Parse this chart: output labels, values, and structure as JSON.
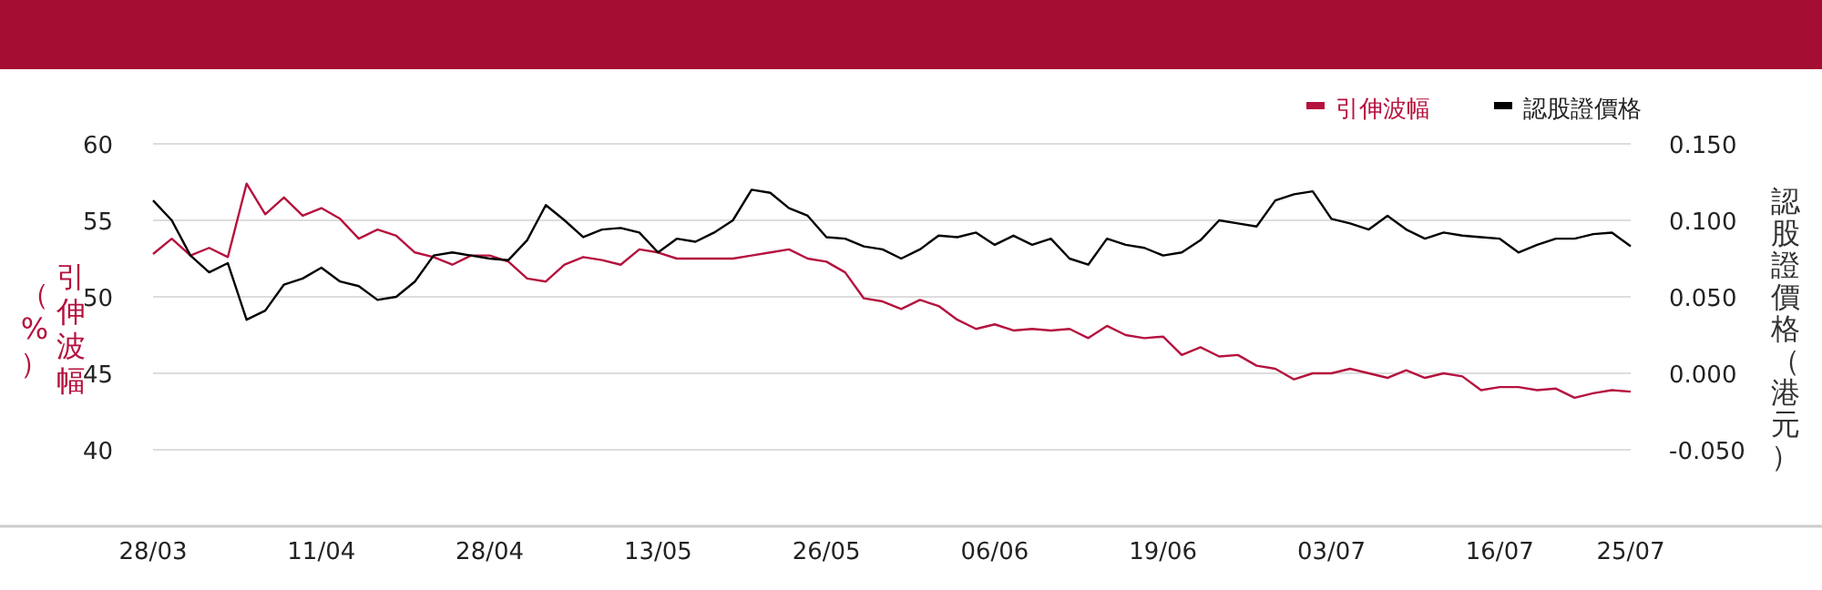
{
  "chart_data": {
    "type": "line",
    "categories": [
      "28/03",
      null,
      null,
      null,
      null,
      null,
      null,
      null,
      null,
      "11/04",
      null,
      null,
      null,
      null,
      null,
      null,
      null,
      null,
      "28/04",
      null,
      null,
      null,
      null,
      null,
      null,
      null,
      null,
      "13/05",
      null,
      null,
      null,
      null,
      null,
      null,
      null,
      null,
      "26/05",
      null,
      null,
      null,
      null,
      null,
      null,
      null,
      null,
      "06/06",
      null,
      null,
      null,
      null,
      null,
      null,
      null,
      null,
      "19/06",
      null,
      null,
      null,
      null,
      null,
      null,
      null,
      null,
      "03/07",
      null,
      null,
      null,
      null,
      null,
      null,
      null,
      null,
      "16/07",
      null,
      null,
      null,
      null,
      null,
      null,
      "25/07"
    ],
    "series": [
      {
        "name": "引伸波幅",
        "color": "#b5123e",
        "values": [
          52.8,
          53.8,
          52.7,
          53.2,
          52.6,
          57.4,
          55.4,
          56.5,
          55.3,
          55.8,
          55.1,
          53.8,
          54.4,
          54.0,
          52.9,
          52.6,
          52.1,
          52.7,
          52.7,
          52.3,
          51.2,
          51.0,
          52.1,
          52.6,
          52.4,
          52.1,
          53.1,
          52.9,
          52.5,
          52.5,
          52.5,
          52.5,
          52.7,
          52.9,
          53.1,
          52.5,
          52.3,
          51.6,
          49.9,
          49.7,
          49.2,
          49.8,
          49.4,
          48.5,
          47.9,
          48.2,
          47.8,
          47.9,
          47.8,
          47.9,
          47.3,
          48.1,
          47.5,
          47.3,
          47.4,
          46.2,
          46.7,
          46.1,
          46.2,
          45.5,
          45.3,
          44.6,
          45.0,
          45.0,
          45.3,
          45.0,
          44.7,
          45.2,
          44.7,
          45.0,
          44.8,
          43.9,
          44.1,
          44.1,
          43.9,
          44.0,
          43.4,
          43.7,
          43.9,
          43.8
        ]
      },
      {
        "name": "認股證價格",
        "color": "#000000",
        "axis": "y2",
        "values": [
          0.113,
          0.1,
          0.077,
          0.066,
          0.072,
          0.035,
          0.041,
          0.058,
          0.062,
          0.069,
          0.06,
          0.057,
          0.048,
          0.05,
          0.06,
          0.077,
          0.079,
          0.077,
          0.075,
          0.074,
          0.087,
          0.11,
          0.1,
          0.089,
          0.094,
          0.095,
          0.092,
          0.079,
          0.088,
          0.086,
          0.092,
          0.1,
          0.12,
          0.118,
          0.108,
          0.103,
          0.089,
          0.088,
          0.083,
          0.081,
          0.075,
          0.081,
          0.09,
          0.089,
          0.092,
          0.084,
          0.09,
          0.084,
          0.088,
          0.075,
          0.071,
          0.088,
          0.084,
          0.082,
          0.077,
          0.079,
          0.087,
          0.1,
          0.098,
          0.096,
          0.113,
          0.117,
          0.119,
          0.101,
          0.098,
          0.094,
          0.103,
          0.094,
          0.088,
          0.092,
          0.09,
          0.089,
          0.088,
          0.079,
          0.084,
          0.088,
          0.088,
          0.091,
          0.092,
          0.083
        ]
      }
    ],
    "ylabel": "引伸波幅（%）",
    "y2label": "認股證價格（港元）",
    "ylim": [
      35,
      60
    ],
    "yticks": [
      40,
      45,
      50,
      55,
      60
    ],
    "y2lim": [
      -0.1,
      0.15
    ],
    "y2ticks": [
      {
        "value": -0.05,
        "label": "-0.050"
      },
      {
        "value": 0,
        "label": "0.000"
      },
      {
        "value": 0.05,
        "label": "0.050"
      },
      {
        "value": 0.1,
        "label": "0.100"
      },
      {
        "value": 0.15,
        "label": "0.150"
      }
    ],
    "grid": "y",
    "legend": "top right"
  }
}
